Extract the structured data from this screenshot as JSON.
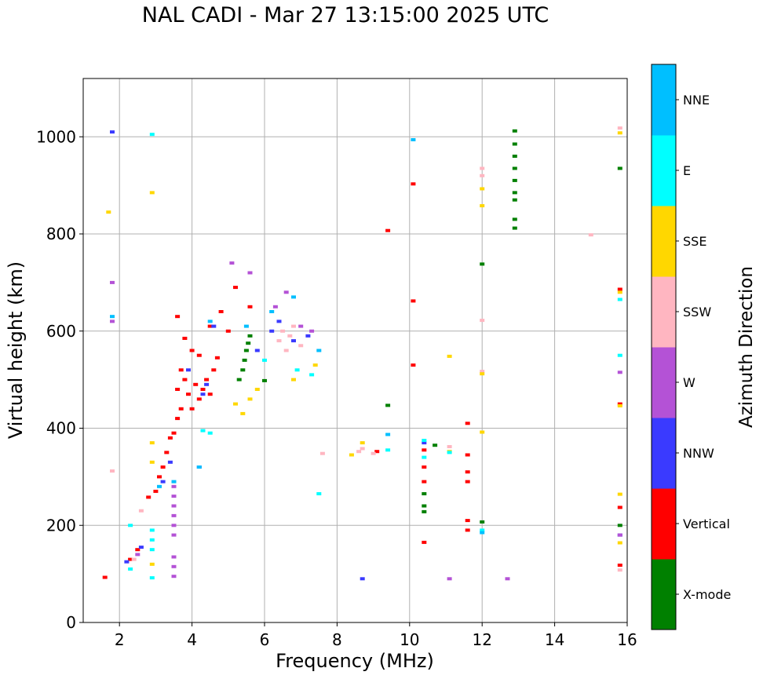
{
  "chart_data": {
    "type": "scatter",
    "title": "NAL CADI - Mar 27 13:15:00 2025 UTC",
    "xlabel": "Frequency (MHz)",
    "ylabel": "Virtual height (km)",
    "xlim": [
      1,
      16
    ],
    "ylim": [
      0,
      1120
    ],
    "xticks": [
      2,
      4,
      6,
      8,
      10,
      12,
      14,
      16
    ],
    "yticks": [
      0,
      200,
      400,
      600,
      800,
      1000
    ],
    "grid": true,
    "colorbar": {
      "label": "Azimuth Direction",
      "categories": [
        {
          "name": "X-mode",
          "color": "#008000"
        },
        {
          "name": "Vertical",
          "color": "#ff0000"
        },
        {
          "name": "NNW",
          "color": "#3a3aff"
        },
        {
          "name": "W",
          "color": "#b452d6"
        },
        {
          "name": "SSW",
          "color": "#ffb6c1"
        },
        {
          "name": "SSE",
          "color": "#ffd700"
        },
        {
          "name": "E",
          "color": "#00ffff"
        },
        {
          "name": "NNE",
          "color": "#00bfff"
        }
      ]
    },
    "series": [
      {
        "name": "X-mode",
        "points": [
          [
            5.4,
            520
          ],
          [
            5.45,
            540
          ],
          [
            5.5,
            560
          ],
          [
            5.55,
            575
          ],
          [
            5.6,
            590
          ],
          [
            5.3,
            500
          ],
          [
            6.0,
            498
          ],
          [
            9.4,
            447
          ],
          [
            10.4,
            265
          ],
          [
            10.4,
            240
          ],
          [
            10.4,
            228
          ],
          [
            10.7,
            365
          ],
          [
            12.0,
            738
          ],
          [
            12.0,
            207
          ],
          [
            12.9,
            1012
          ],
          [
            12.9,
            985
          ],
          [
            12.9,
            960
          ],
          [
            12.9,
            935
          ],
          [
            12.9,
            910
          ],
          [
            12.9,
            885
          ],
          [
            12.9,
            870
          ],
          [
            12.9,
            830
          ],
          [
            12.9,
            812
          ],
          [
            15.8,
            935
          ],
          [
            15.8,
            200
          ]
        ]
      },
      {
        "name": "Vertical",
        "points": [
          [
            1.6,
            93
          ],
          [
            2.3,
            130
          ],
          [
            2.5,
            150
          ],
          [
            2.8,
            258
          ],
          [
            3.0,
            270
          ],
          [
            3.1,
            300
          ],
          [
            3.2,
            320
          ],
          [
            3.3,
            350
          ],
          [
            3.4,
            380
          ],
          [
            3.5,
            390
          ],
          [
            3.6,
            420
          ],
          [
            3.7,
            440
          ],
          [
            3.6,
            480
          ],
          [
            3.7,
            520
          ],
          [
            3.8,
            500
          ],
          [
            3.9,
            470
          ],
          [
            4.0,
            440
          ],
          [
            4.1,
            490
          ],
          [
            4.2,
            460
          ],
          [
            4.3,
            480
          ],
          [
            4.4,
            500
          ],
          [
            4.5,
            470
          ],
          [
            4.6,
            520
          ],
          [
            4.2,
            550
          ],
          [
            3.8,
            585
          ],
          [
            4.5,
            610
          ],
          [
            4.8,
            640
          ],
          [
            5.0,
            600
          ],
          [
            5.2,
            690
          ],
          [
            5.6,
            650
          ],
          [
            3.6,
            630
          ],
          [
            4.0,
            560
          ],
          [
            4.7,
            545
          ],
          [
            9.1,
            352
          ],
          [
            9.4,
            807
          ],
          [
            10.1,
            903
          ],
          [
            10.1,
            662
          ],
          [
            10.1,
            530
          ],
          [
            10.4,
            355
          ],
          [
            10.4,
            320
          ],
          [
            10.4,
            290
          ],
          [
            10.4,
            165
          ],
          [
            11.6,
            410
          ],
          [
            11.6,
            345
          ],
          [
            11.6,
            310
          ],
          [
            11.6,
            290
          ],
          [
            11.6,
            210
          ],
          [
            11.6,
            190
          ],
          [
            15.8,
            686
          ],
          [
            15.8,
            450
          ],
          [
            15.8,
            237
          ],
          [
            15.8,
            118
          ]
        ]
      },
      {
        "name": "NNW",
        "points": [
          [
            1.8,
            1010
          ],
          [
            2.2,
            125
          ],
          [
            2.6,
            155
          ],
          [
            3.2,
            290
          ],
          [
            3.4,
            330
          ],
          [
            4.3,
            470
          ],
          [
            4.4,
            490
          ],
          [
            3.9,
            520
          ],
          [
            4.6,
            610
          ],
          [
            5.8,
            560
          ],
          [
            6.2,
            600
          ],
          [
            6.4,
            620
          ],
          [
            6.8,
            580
          ],
          [
            7.2,
            590
          ],
          [
            4.2,
            320
          ],
          [
            8.7,
            90
          ],
          [
            10.4,
            370
          ],
          [
            15.8,
            180
          ]
        ]
      },
      {
        "name": "W",
        "points": [
          [
            1.8,
            700
          ],
          [
            1.8,
            620
          ],
          [
            3.5,
            280
          ],
          [
            3.5,
            260
          ],
          [
            3.5,
            240
          ],
          [
            3.5,
            220
          ],
          [
            3.5,
            200
          ],
          [
            3.5,
            180
          ],
          [
            3.5,
            135
          ],
          [
            3.5,
            115
          ],
          [
            3.5,
            95
          ],
          [
            2.5,
            140
          ],
          [
            5.1,
            740
          ],
          [
            5.6,
            720
          ],
          [
            6.3,
            650
          ],
          [
            6.6,
            680
          ],
          [
            7.0,
            610
          ],
          [
            7.3,
            600
          ],
          [
            11.1,
            90
          ],
          [
            12.7,
            90
          ],
          [
            15.8,
            515
          ],
          [
            15.8,
            180
          ]
        ]
      },
      {
        "name": "SSW",
        "points": [
          [
            1.8,
            312
          ],
          [
            2.4,
            130
          ],
          [
            2.6,
            230
          ],
          [
            6.4,
            580
          ],
          [
            6.5,
            600
          ],
          [
            6.6,
            560
          ],
          [
            6.7,
            590
          ],
          [
            6.8,
            610
          ],
          [
            7.0,
            570
          ],
          [
            8.6,
            352
          ],
          [
            8.7,
            358
          ],
          [
            9.0,
            348
          ],
          [
            11.1,
            362
          ],
          [
            12.0,
            935
          ],
          [
            12.0,
            920
          ],
          [
            12.0,
            622
          ],
          [
            12.0,
            517
          ],
          [
            15.0,
            798
          ],
          [
            15.8,
            1018
          ],
          [
            15.8,
            108
          ],
          [
            7.6,
            348
          ]
        ]
      },
      {
        "name": "SSE",
        "points": [
          [
            1.7,
            845
          ],
          [
            2.9,
            885
          ],
          [
            2.9,
            370
          ],
          [
            2.9,
            330
          ],
          [
            2.9,
            120
          ],
          [
            5.2,
            450
          ],
          [
            5.4,
            430
          ],
          [
            5.6,
            460
          ],
          [
            5.8,
            480
          ],
          [
            7.4,
            530
          ],
          [
            6.8,
            500
          ],
          [
            8.4,
            345
          ],
          [
            8.7,
            370
          ],
          [
            11.1,
            548
          ],
          [
            11.1,
            352
          ],
          [
            12.0,
            893
          ],
          [
            12.0,
            858
          ],
          [
            12.0,
            512
          ],
          [
            12.0,
            392
          ],
          [
            15.8,
            1008
          ],
          [
            15.8,
            680
          ],
          [
            15.8,
            446
          ],
          [
            15.8,
            264
          ],
          [
            15.8,
            164
          ]
        ]
      },
      {
        "name": "E",
        "points": [
          [
            2.9,
            1005
          ],
          [
            2.3,
            200
          ],
          [
            2.3,
            110
          ],
          [
            2.9,
            190
          ],
          [
            2.9,
            170
          ],
          [
            2.9,
            150
          ],
          [
            2.9,
            92
          ],
          [
            4.3,
            395
          ],
          [
            4.5,
            390
          ],
          [
            6.0,
            540
          ],
          [
            6.9,
            520
          ],
          [
            7.3,
            510
          ],
          [
            7.5,
            265
          ],
          [
            9.4,
            355
          ],
          [
            10.4,
            375
          ],
          [
            10.4,
            340
          ],
          [
            11.1,
            350
          ],
          [
            12.0,
            190
          ],
          [
            15.8,
            665
          ],
          [
            15.8,
            550
          ]
        ]
      },
      {
        "name": "NNE",
        "points": [
          [
            1.8,
            630
          ],
          [
            3.1,
            280
          ],
          [
            3.5,
            290
          ],
          [
            4.2,
            320
          ],
          [
            4.5,
            620
          ],
          [
            5.5,
            610
          ],
          [
            6.2,
            640
          ],
          [
            6.8,
            670
          ],
          [
            7.5,
            560
          ],
          [
            9.4,
            387
          ],
          [
            10.1,
            994
          ],
          [
            12.0,
            185
          ]
        ]
      }
    ]
  }
}
